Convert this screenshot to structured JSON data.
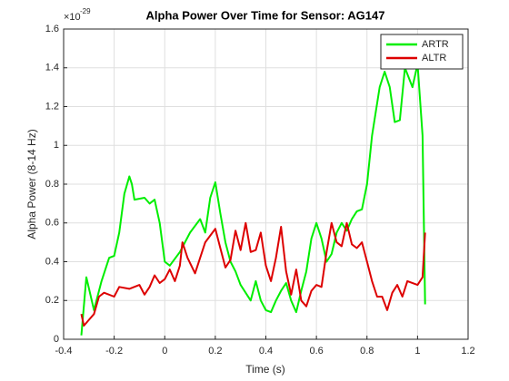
{
  "chart_data": {
    "type": "line",
    "title": "Alpha Power Over Time for Sensor: AG147",
    "x_label": "Time (s)",
    "y_label": "Alpha Power (8-14 Hz)",
    "y_multiplier": {
      "base": "×10",
      "exponent": "-29"
    },
    "xlim": [
      -0.4,
      1.2
    ],
    "xticks": [
      -0.4,
      -0.2,
      0,
      0.2,
      0.4,
      0.6,
      0.8,
      1,
      1.2
    ],
    "ylim": [
      0,
      1.6
    ],
    "yticks": [
      0,
      0.2,
      0.4,
      0.6,
      0.8,
      1,
      1.2,
      1.4,
      1.6
    ],
    "grid": true,
    "legend": "top-right",
    "series": [
      {
        "name": "ARTR",
        "color": "#00ee00",
        "x": [
          -0.33,
          -0.31,
          -0.28,
          -0.25,
          -0.22,
          -0.2,
          -0.18,
          -0.16,
          -0.14,
          -0.13,
          -0.12,
          -0.08,
          -0.06,
          -0.04,
          -0.02,
          0.0,
          0.02,
          0.06,
          0.1,
          0.14,
          0.16,
          0.18,
          0.2,
          0.22,
          0.24,
          0.26,
          0.28,
          0.3,
          0.34,
          0.36,
          0.38,
          0.4,
          0.42,
          0.44,
          0.46,
          0.48,
          0.5,
          0.52,
          0.54,
          0.56,
          0.58,
          0.6,
          0.62,
          0.64,
          0.66,
          0.68,
          0.7,
          0.72,
          0.74,
          0.76,
          0.78,
          0.8,
          0.82,
          0.85,
          0.87,
          0.89,
          0.91,
          0.93,
          0.95,
          0.98,
          1.0,
          1.02,
          1.03
        ],
        "values": [
          0.02,
          0.32,
          0.15,
          0.3,
          0.42,
          0.43,
          0.55,
          0.75,
          0.84,
          0.8,
          0.72,
          0.73,
          0.7,
          0.72,
          0.6,
          0.4,
          0.38,
          0.45,
          0.55,
          0.62,
          0.55,
          0.73,
          0.81,
          0.65,
          0.5,
          0.4,
          0.35,
          0.28,
          0.2,
          0.3,
          0.2,
          0.15,
          0.14,
          0.2,
          0.25,
          0.29,
          0.2,
          0.14,
          0.25,
          0.35,
          0.52,
          0.6,
          0.52,
          0.4,
          0.44,
          0.55,
          0.6,
          0.56,
          0.62,
          0.66,
          0.67,
          0.8,
          1.05,
          1.3,
          1.38,
          1.3,
          1.12,
          1.13,
          1.4,
          1.3,
          1.42,
          1.05,
          0.18
        ]
      },
      {
        "name": "ALTR",
        "color": "#dd0000",
        "x": [
          -0.33,
          -0.32,
          -0.3,
          -0.28,
          -0.26,
          -0.24,
          -0.2,
          -0.18,
          -0.14,
          -0.1,
          -0.08,
          -0.06,
          -0.04,
          -0.02,
          0.0,
          0.02,
          0.04,
          0.06,
          0.07,
          0.09,
          0.12,
          0.16,
          0.2,
          0.22,
          0.24,
          0.26,
          0.28,
          0.3,
          0.32,
          0.34,
          0.36,
          0.38,
          0.4,
          0.42,
          0.44,
          0.46,
          0.48,
          0.5,
          0.52,
          0.54,
          0.56,
          0.58,
          0.6,
          0.62,
          0.64,
          0.66,
          0.68,
          0.7,
          0.72,
          0.74,
          0.76,
          0.78,
          0.8,
          0.82,
          0.84,
          0.86,
          0.88,
          0.9,
          0.92,
          0.94,
          0.96,
          1.0,
          1.02,
          1.03
        ],
        "values": [
          0.13,
          0.07,
          0.1,
          0.13,
          0.22,
          0.24,
          0.22,
          0.27,
          0.26,
          0.28,
          0.23,
          0.27,
          0.33,
          0.29,
          0.31,
          0.36,
          0.3,
          0.38,
          0.5,
          0.42,
          0.34,
          0.5,
          0.57,
          0.47,
          0.37,
          0.41,
          0.56,
          0.46,
          0.6,
          0.45,
          0.46,
          0.55,
          0.38,
          0.3,
          0.42,
          0.58,
          0.35,
          0.23,
          0.36,
          0.2,
          0.17,
          0.25,
          0.28,
          0.27,
          0.45,
          0.6,
          0.5,
          0.48,
          0.6,
          0.49,
          0.47,
          0.5,
          0.4,
          0.3,
          0.22,
          0.22,
          0.15,
          0.24,
          0.28,
          0.22,
          0.3,
          0.28,
          0.32,
          0.55
        ]
      }
    ]
  }
}
